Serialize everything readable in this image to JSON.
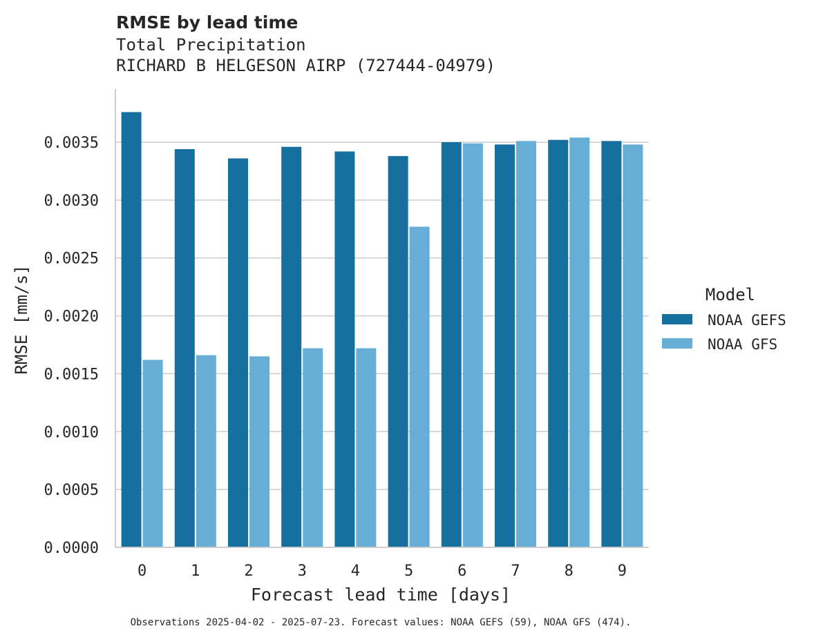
{
  "chart_data": {
    "type": "bar",
    "title": "RMSE by lead time",
    "subtitle_lines": [
      "Total Precipitation",
      "RICHARD B HELGESON AIRP (727444-04979)"
    ],
    "xlabel": "Forecast lead time [days]",
    "ylabel": "RMSE [mm/s]",
    "categories": [
      "0",
      "1",
      "2",
      "3",
      "4",
      "5",
      "6",
      "7",
      "8",
      "9"
    ],
    "ylim": [
      0,
      0.00395
    ],
    "yticks": [
      0.0,
      0.0005,
      0.001,
      0.0015,
      0.002,
      0.0025,
      0.003,
      0.0035
    ],
    "ytick_labels": [
      "0.0000",
      "0.0005",
      "0.0010",
      "0.0015",
      "0.0020",
      "0.0025",
      "0.0030",
      "0.0035"
    ],
    "grid": "horizontal",
    "legend": {
      "title": "Model",
      "position": "right"
    },
    "series": [
      {
        "name": "NOAA GEFS",
        "color": "#176fa0",
        "values": [
          0.00376,
          0.00344,
          0.00336,
          0.00346,
          0.00342,
          0.00338,
          0.0035,
          0.00348,
          0.00352,
          0.00351
        ]
      },
      {
        "name": "NOAA GFS",
        "color": "#67aed6",
        "values": [
          0.00162,
          0.00166,
          0.00165,
          0.00172,
          0.00172,
          0.00277,
          0.00349,
          0.00351,
          0.00354,
          0.00348
        ]
      }
    ],
    "footnote": "Observations 2025-04-02 - 2025-07-23. Forecast values: NOAA GEFS (59), NOAA GFS (474)."
  }
}
